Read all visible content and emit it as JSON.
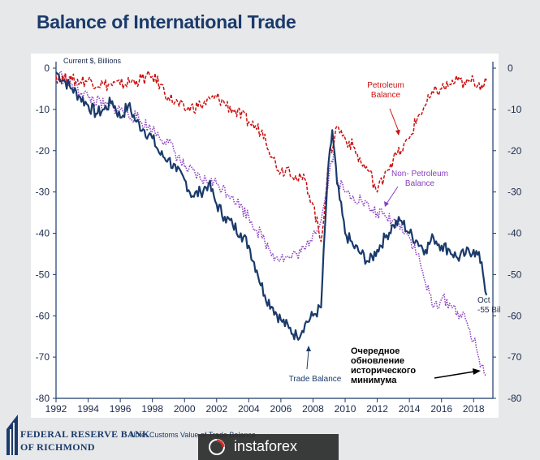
{
  "title": "Balance of International Trade",
  "note": "Note: Customs Value of Trade Balance",
  "org": {
    "line1": "FEDERAL RESERVE BANK",
    "line2": "OF RICHMOND"
  },
  "watermark": "instaforex",
  "colors": {
    "trade": "#1a3a6b",
    "petroleum": "#cc1111",
    "nonpetroleum": "#8a3fbf",
    "title": "#1a3a6b"
  },
  "chart_data": {
    "type": "line",
    "title": "",
    "ylabel": "Current $, Billions",
    "xlabel": "",
    "xlim": [
      1992,
      2019.2
    ],
    "ylim": [
      -80,
      0
    ],
    "xticks": [
      "1992",
      "1994",
      "1996",
      "1998",
      "2000",
      "2002",
      "2004",
      "2006",
      "2008",
      "2010",
      "2012",
      "2014",
      "2016",
      "2018"
    ],
    "yticks": [
      "0",
      "-10",
      "-20",
      "-30",
      "-40",
      "-50",
      "-60",
      "-70",
      "-80"
    ],
    "grid": false,
    "series": [
      {
        "name": "Trade Balance",
        "style": "solid",
        "x": [
          1992.0,
          1992.5,
          1993.0,
          1993.5,
          1994.0,
          1994.5,
          1995.0,
          1995.5,
          1996.0,
          1996.5,
          1997.0,
          1997.5,
          1998.0,
          1998.5,
          1999.0,
          1999.5,
          2000.0,
          2000.5,
          2001.0,
          2001.5,
          2002.0,
          2002.5,
          2003.0,
          2003.5,
          2004.0,
          2004.5,
          2005.0,
          2005.5,
          2006.0,
          2006.5,
          2007.0,
          2007.5,
          2008.0,
          2008.5,
          2008.9,
          2009.2,
          2009.5,
          2010.0,
          2010.5,
          2011.0,
          2011.5,
          2012.0,
          2012.5,
          2013.0,
          2013.5,
          2014.0,
          2014.5,
          2015.0,
          2015.5,
          2016.0,
          2016.5,
          2017.0,
          2017.5,
          2018.0,
          2018.5,
          2018.8
        ],
        "values": [
          -1,
          -3,
          -5,
          -7,
          -9,
          -11,
          -10,
          -8,
          -12,
          -9,
          -13,
          -15,
          -17,
          -21,
          -22,
          -25,
          -27,
          -31,
          -30,
          -28,
          -33,
          -36,
          -38,
          -40,
          -43,
          -49,
          -55,
          -58,
          -61,
          -63,
          -65,
          -62,
          -60,
          -58,
          -27,
          -15,
          -28,
          -40,
          -43,
          -45,
          -47,
          -44,
          -41,
          -38,
          -37,
          -40,
          -42,
          -44,
          -41,
          -43,
          -44,
          -46,
          -45,
          -44,
          -47,
          -55
        ]
      },
      {
        "name": "Petroleum Balance",
        "style": "dashed",
        "x": [
          1992.0,
          1993.0,
          1994.0,
          1995.0,
          1996.0,
          1997.0,
          1998.0,
          1998.5,
          1999.0,
          2000.0,
          2001.0,
          2002.0,
          2003.0,
          2004.0,
          2005.0,
          2005.5,
          2006.0,
          2006.5,
          2007.0,
          2007.5,
          2008.0,
          2008.5,
          2009.0,
          2009.5,
          2010.0,
          2010.5,
          2011.0,
          2011.5,
          2012.0,
          2012.5,
          2013.0,
          2013.5,
          2014.0,
          2014.5,
          2015.0,
          2015.5,
          2016.0,
          2016.5,
          2017.0,
          2017.5,
          2018.0,
          2018.5,
          2018.8
        ],
        "values": [
          -2,
          -3,
          -3,
          -4,
          -4,
          -3,
          -2,
          -4,
          -7,
          -10,
          -9,
          -7,
          -10,
          -13,
          -16,
          -22,
          -25,
          -24,
          -27,
          -27,
          -33,
          -42,
          -22,
          -14,
          -17,
          -19,
          -23,
          -25,
          -30,
          -25,
          -22,
          -20,
          -17,
          -12,
          -9,
          -6,
          -5,
          -4,
          -3,
          -4,
          -3,
          -4,
          -3
        ]
      },
      {
        "name": "Non- Petroleum Balance",
        "style": "dotted",
        "x": [
          1992.0,
          1993.0,
          1994.0,
          1995.0,
          1996.0,
          1997.0,
          1998.0,
          1999.0,
          2000.0,
          2001.0,
          2002.0,
          2003.0,
          2004.0,
          2005.0,
          2005.5,
          2006.0,
          2006.5,
          2007.0,
          2007.5,
          2008.0,
          2008.5,
          2009.0,
          2009.3,
          2009.5,
          2010.0,
          2010.5,
          2011.0,
          2011.5,
          2012.0,
          2012.5,
          2013.0,
          2013.5,
          2014.0,
          2014.5,
          2015.0,
          2015.5,
          2016.0,
          2016.5,
          2017.0,
          2017.5,
          2018.0,
          2018.5,
          2018.8
        ],
        "values": [
          -1,
          -4,
          -7,
          -9,
          -10,
          -12,
          -15,
          -18,
          -24,
          -27,
          -28,
          -31,
          -36,
          -42,
          -45,
          -46,
          -46,
          -45,
          -44,
          -40,
          -37,
          -26,
          -20,
          -27,
          -30,
          -31,
          -32,
          -34,
          -35,
          -36,
          -37,
          -38,
          -41,
          -45,
          -52,
          -58,
          -56,
          -57,
          -59,
          -61,
          -66,
          -72,
          -74
        ]
      }
    ],
    "annotations": [
      {
        "label_lines": [
          "Petroleum",
          "Balance"
        ]
      },
      {
        "label_lines": [
          "Non- Petroleum",
          "Balance"
        ]
      },
      {
        "label_lines": [
          "Trade Balance"
        ]
      },
      {
        "label_lines": [
          "Oct",
          "-55 Bil"
        ]
      },
      {
        "label_lines": [
          "Очередное",
          "обновление",
          "исторического",
          "минимума"
        ]
      }
    ]
  }
}
